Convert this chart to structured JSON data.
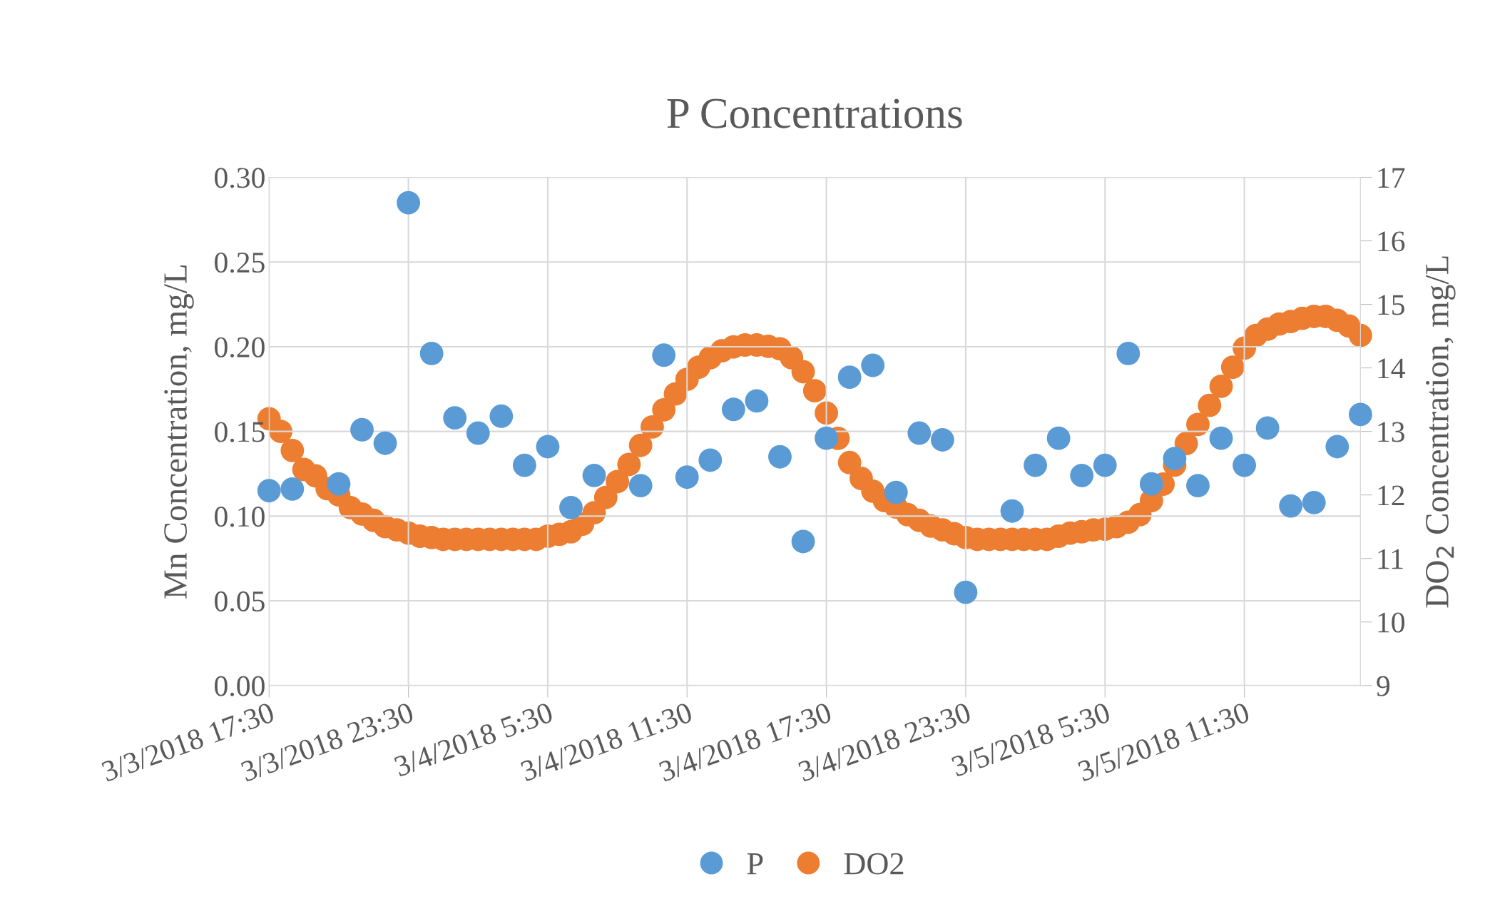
{
  "chart_data": {
    "type": "scatter",
    "title": "P Concentrations",
    "ylabel": "Mn Concentration, mg/L",
    "y2label": "DO$_{2}$ Concentration, mg/L",
    "xlim": [
      "2018-03-03T17:30",
      "2018-03-05T16:30"
    ],
    "xticks": [
      {
        "value": "2018-03-03T17:30",
        "label": "3/3/2018 17:30"
      },
      {
        "value": "2018-03-03T23:30",
        "label": "3/3/2018 23:30"
      },
      {
        "value": "2018-03-04T05:30",
        "label": "3/4/2018 5:30"
      },
      {
        "value": "2018-03-04T11:30",
        "label": "3/4/2018 11:30"
      },
      {
        "value": "2018-03-04T17:30",
        "label": "3/4/2018 17:30"
      },
      {
        "value": "2018-03-04T23:30",
        "label": "3/4/2018 23:30"
      },
      {
        "value": "2018-03-05T05:30",
        "label": "3/5/2018 5:30"
      },
      {
        "value": "2018-03-05T11:30",
        "label": "3/5/2018 11:30"
      }
    ],
    "ylim": [
      0,
      0.3
    ],
    "yticks": [
      {
        "value": 0,
        "label": "0.00"
      },
      {
        "value": 0.05,
        "label": "0.05"
      },
      {
        "value": 0.1,
        "label": "0.10"
      },
      {
        "value": 0.15,
        "label": "0.15"
      },
      {
        "value": 0.2,
        "label": "0.20"
      },
      {
        "value": 0.25,
        "label": "0.25"
      },
      {
        "value": 0.3,
        "label": "0.30"
      }
    ],
    "y2lim": [
      9,
      17
    ],
    "y2ticks": [
      9,
      10,
      11,
      12,
      13,
      14,
      15,
      16,
      17
    ],
    "grid": true,
    "legend": "bottom",
    "marker": "circle",
    "series": [
      {
        "name": "P",
        "color": "#5b9bd5",
        "x": [
          "2018-03-03T17:30",
          "2018-03-03T18:30",
          "2018-03-03T19:30",
          "2018-03-03T20:30",
          "2018-03-03T21:30",
          "2018-03-03T22:30",
          "2018-03-03T23:30",
          "2018-03-04T00:30",
          "2018-03-04T01:30",
          "2018-03-04T02:30",
          "2018-03-04T03:30",
          "2018-03-04T04:30",
          "2018-03-04T05:30",
          "2018-03-04T06:30",
          "2018-03-04T07:30",
          "2018-03-04T08:30",
          "2018-03-04T09:30",
          "2018-03-04T10:30",
          "2018-03-04T11:30",
          "2018-03-04T12:30",
          "2018-03-04T13:30",
          "2018-03-04T14:30",
          "2018-03-04T15:30",
          "2018-03-04T16:30",
          "2018-03-04T17:30",
          "2018-03-04T18:30",
          "2018-03-04T19:30",
          "2018-03-04T20:30",
          "2018-03-04T21:30",
          "2018-03-04T22:30",
          "2018-03-04T23:30",
          "2018-03-05T00:30",
          "2018-03-05T01:30",
          "2018-03-05T02:30",
          "2018-03-05T03:30",
          "2018-03-05T04:30",
          "2018-03-05T05:30",
          "2018-03-05T06:30",
          "2018-03-05T07:30",
          "2018-03-05T08:30",
          "2018-03-05T09:30",
          "2018-03-05T10:30",
          "2018-03-05T11:30",
          "2018-03-05T12:30",
          "2018-03-05T13:30",
          "2018-03-05T14:30",
          "2018-03-05T15:30",
          "2018-03-05T16:30"
        ],
        "values": [
          0.115,
          0.116,
          null,
          0.119,
          0.151,
          0.143,
          0.285,
          0.196,
          0.158,
          0.149,
          0.159,
          0.13,
          0.141,
          0.105,
          0.124,
          null,
          0.118,
          0.195,
          0.123,
          0.133,
          0.163,
          0.168,
          0.135,
          0.085,
          0.146,
          0.182,
          0.189,
          0.114,
          0.149,
          0.145,
          0.055,
          null,
          0.103,
          0.13,
          0.146,
          0.124,
          0.13,
          0.196,
          0.119,
          0.134,
          0.118,
          0.146,
          0.13,
          0.152,
          0.106,
          0.108,
          0.141,
          0.16
        ]
      },
      {
        "name": "DO2",
        "color": "#ed7d31",
        "axis": "y2",
        "x": [
          "2018-03-03T17:30",
          "2018-03-03T18:00",
          "2018-03-03T18:30",
          "2018-03-03T19:00",
          "2018-03-03T19:30",
          "2018-03-03T20:00",
          "2018-03-03T20:30",
          "2018-03-03T21:00",
          "2018-03-03T21:30",
          "2018-03-03T22:00",
          "2018-03-03T22:30",
          "2018-03-03T23:00",
          "2018-03-03T23:30",
          "2018-03-04T00:00",
          "2018-03-04T00:30",
          "2018-03-04T01:00",
          "2018-03-04T01:30",
          "2018-03-04T02:00",
          "2018-03-04T02:30",
          "2018-03-04T03:00",
          "2018-03-04T03:30",
          "2018-03-04T04:00",
          "2018-03-04T04:30",
          "2018-03-04T05:00",
          "2018-03-04T05:30",
          "2018-03-04T06:00",
          "2018-03-04T06:30",
          "2018-03-04T07:00",
          "2018-03-04T07:30",
          "2018-03-04T08:00",
          "2018-03-04T08:30",
          "2018-03-04T09:00",
          "2018-03-04T09:30",
          "2018-03-04T10:00",
          "2018-03-04T10:30",
          "2018-03-04T11:00",
          "2018-03-04T11:30",
          "2018-03-04T12:00",
          "2018-03-04T12:30",
          "2018-03-04T13:00",
          "2018-03-04T13:30",
          "2018-03-04T14:00",
          "2018-03-04T14:30",
          "2018-03-04T15:00",
          "2018-03-04T15:30",
          "2018-03-04T16:00",
          "2018-03-04T16:30",
          "2018-03-04T17:00",
          "2018-03-04T17:30",
          "2018-03-04T18:00",
          "2018-03-04T18:30",
          "2018-03-04T19:00",
          "2018-03-04T19:30",
          "2018-03-04T20:00",
          "2018-03-04T20:30",
          "2018-03-04T21:00",
          "2018-03-04T21:30",
          "2018-03-04T22:00",
          "2018-03-04T22:30",
          "2018-03-04T23:00",
          "2018-03-04T23:30",
          "2018-03-05T00:00",
          "2018-03-05T00:30",
          "2018-03-05T01:00",
          "2018-03-05T01:30",
          "2018-03-05T02:00",
          "2018-03-05T02:30",
          "2018-03-05T03:00",
          "2018-03-05T03:30",
          "2018-03-05T04:00",
          "2018-03-05T04:30",
          "2018-03-05T05:00",
          "2018-03-05T05:30",
          "2018-03-05T06:00",
          "2018-03-05T06:30",
          "2018-03-05T07:00",
          "2018-03-05T07:30",
          "2018-03-05T08:00",
          "2018-03-05T08:30",
          "2018-03-05T09:00",
          "2018-03-05T09:30",
          "2018-03-05T10:00",
          "2018-03-05T10:30",
          "2018-03-05T11:00",
          "2018-03-05T11:30",
          "2018-03-05T12:00",
          "2018-03-05T12:30",
          "2018-03-05T13:00",
          "2018-03-05T13:30",
          "2018-03-05T14:00",
          "2018-03-05T14:30",
          "2018-03-05T15:00",
          "2018-03-05T15:30",
          "2018-03-05T16:00",
          "2018-03-05T16:30"
        ],
        "values": [
          13.2,
          13.0,
          12.7,
          12.4,
          12.3,
          12.1,
          12.0,
          11.8,
          11.7,
          11.6,
          11.5,
          11.45,
          11.4,
          11.35,
          11.33,
          11.3,
          11.3,
          11.3,
          11.3,
          11.3,
          11.3,
          11.3,
          11.3,
          11.3,
          11.35,
          11.38,
          11.42,
          11.54,
          11.72,
          11.96,
          12.21,
          12.48,
          12.78,
          13.07,
          13.34,
          13.59,
          13.82,
          14.01,
          14.16,
          14.27,
          14.33,
          14.36,
          14.36,
          14.34,
          14.3,
          14.16,
          13.94,
          13.64,
          13.29,
          12.89,
          12.51,
          12.26,
          12.06,
          11.91,
          11.81,
          11.69,
          11.6,
          11.51,
          11.45,
          11.39,
          11.33,
          11.3,
          11.3,
          11.3,
          11.3,
          11.3,
          11.3,
          11.3,
          11.35,
          11.4,
          11.42,
          11.45,
          11.46,
          11.5,
          11.57,
          11.69,
          11.91,
          12.17,
          12.47,
          12.81,
          13.11,
          13.41,
          13.71,
          14.01,
          14.31,
          14.51,
          14.61,
          14.69,
          14.73,
          14.78,
          14.81,
          14.81,
          14.75,
          14.66,
          14.51
        ]
      }
    ]
  }
}
